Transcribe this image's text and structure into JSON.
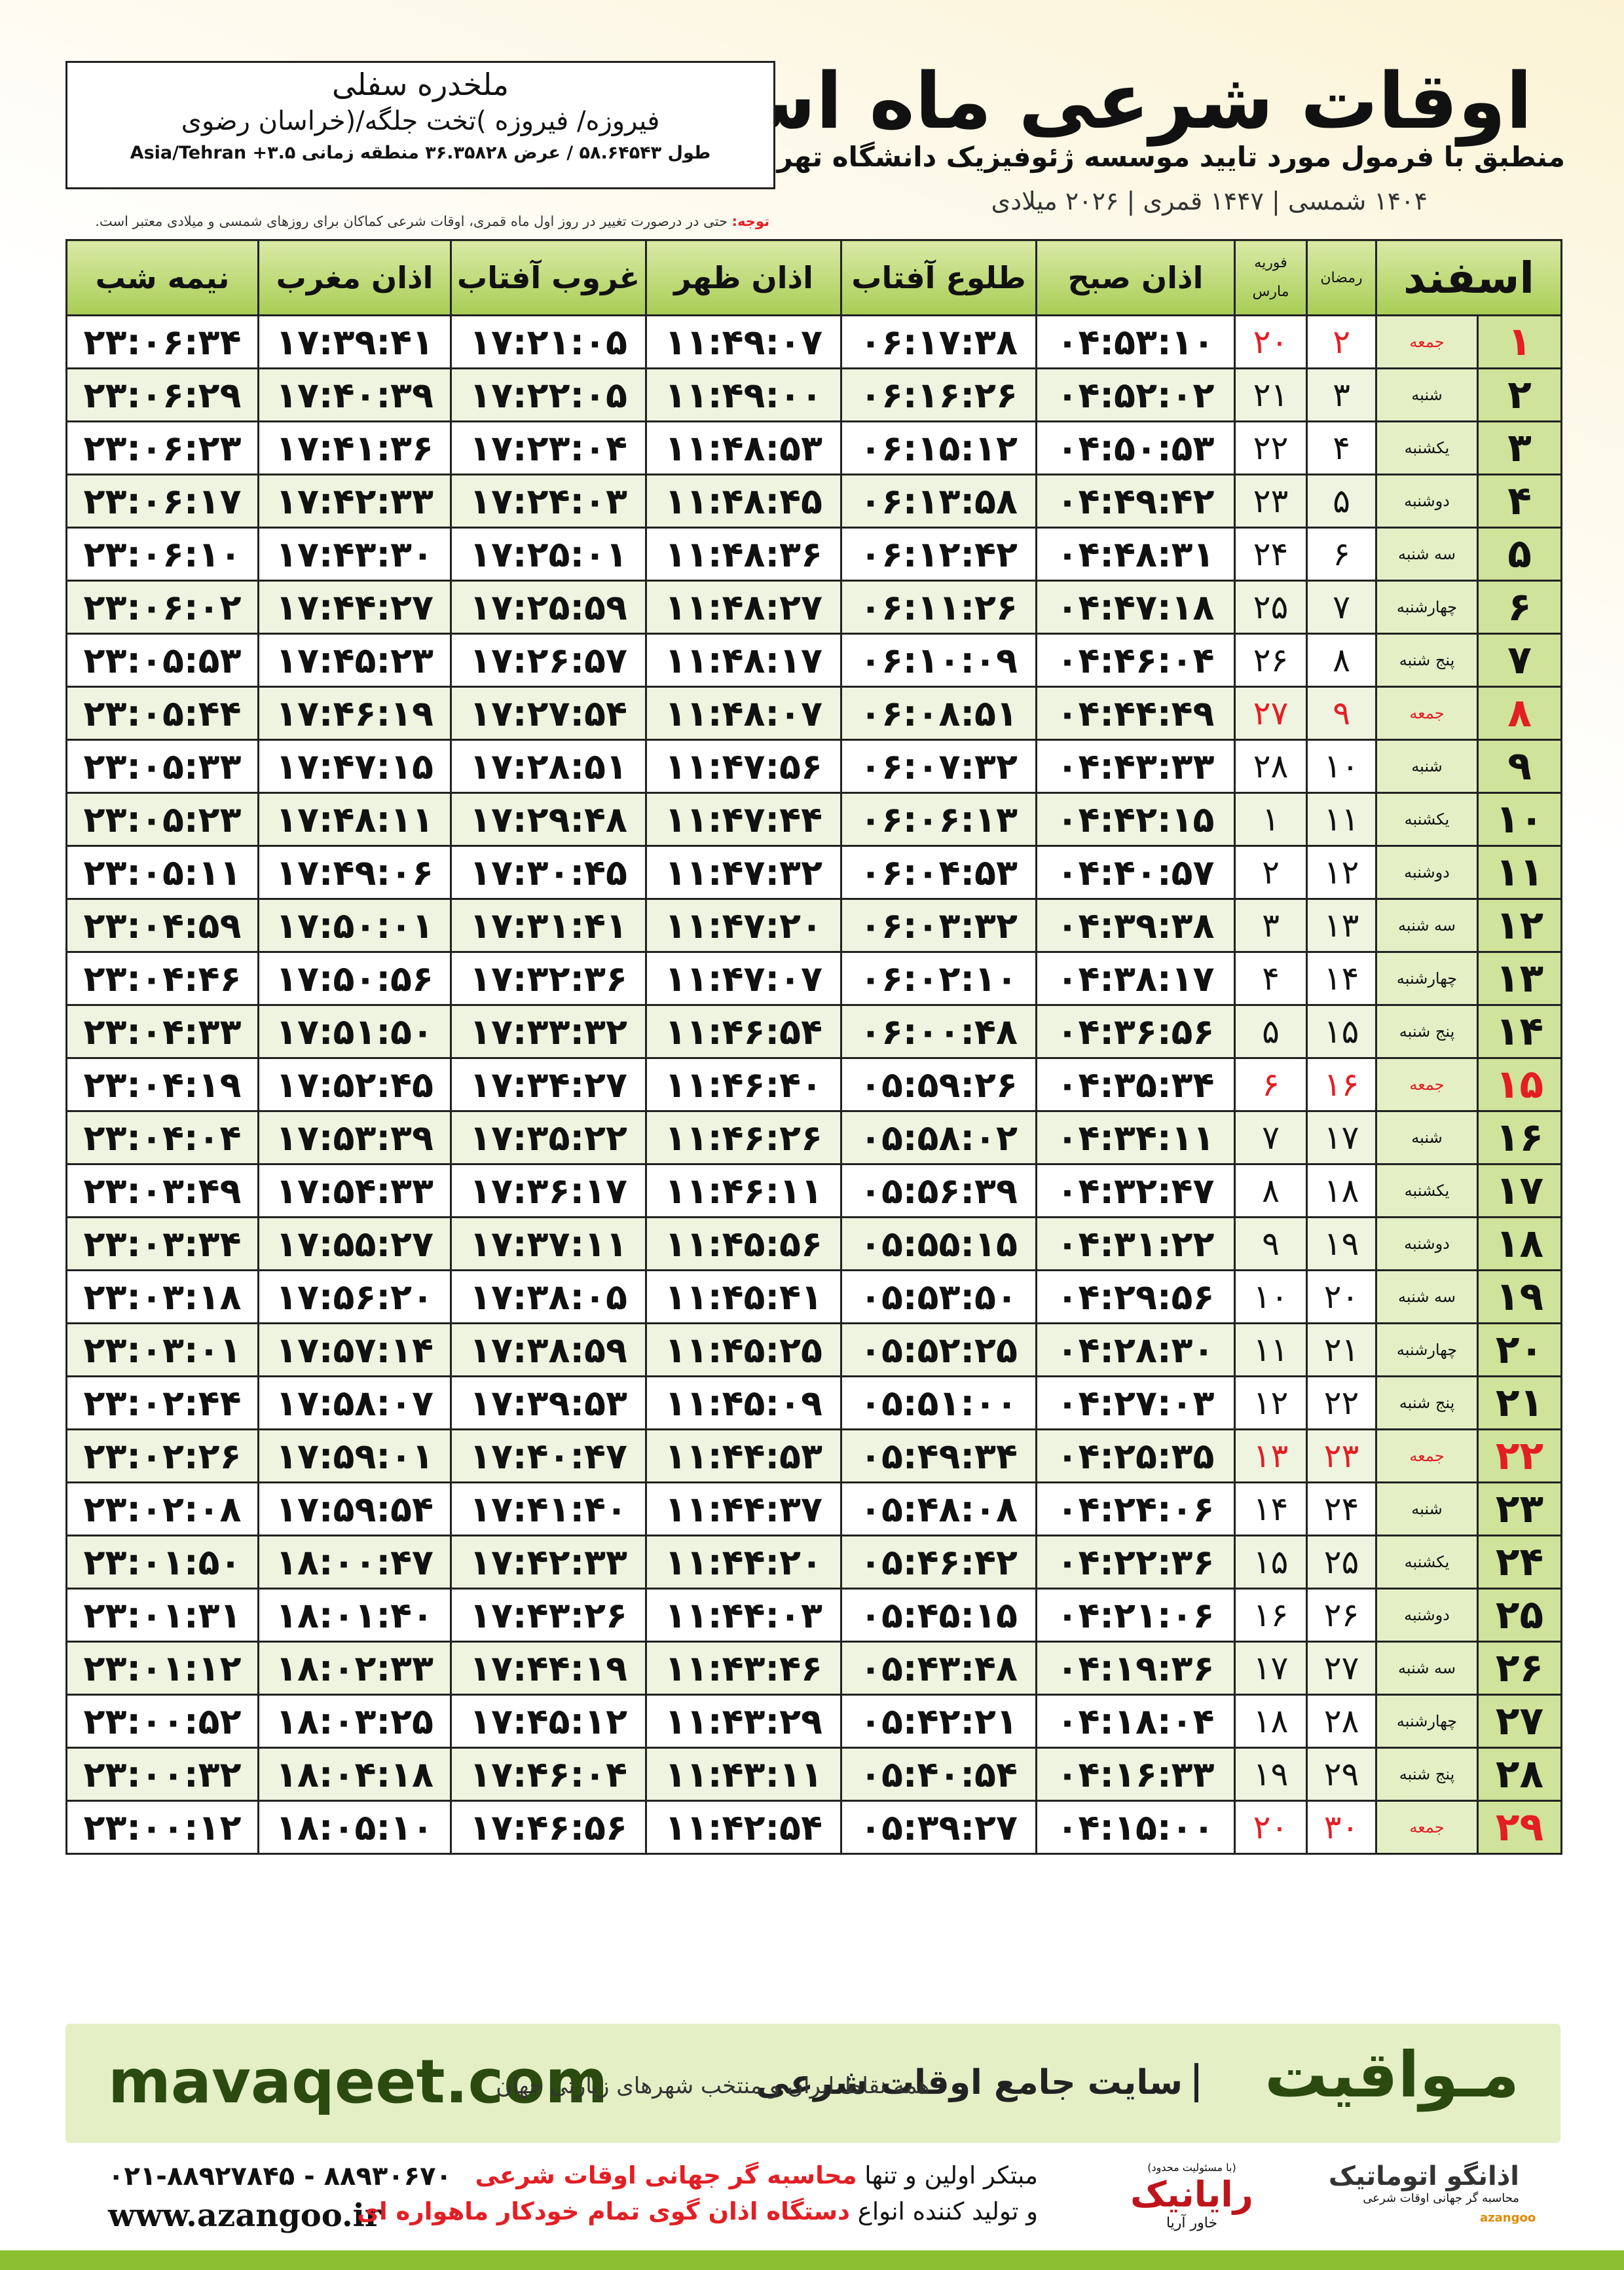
{
  "header": {
    "title": "اوقات شرعی ماه اسفند",
    "subtitle": "منطبق با فرمول مورد تایید موسسه ژئوفیزیک دانشگاه تهران",
    "dates": "۱۴۰۴ شمسی | ۱۴۴۷ قمری | ۲۰۲۶ میلادی"
  },
  "location": {
    "name": "ملخدره سفلی",
    "region": "فیروزه/ فیروزه )تخت جلگه/(خراسان رضوی",
    "coordinates": "طول ۵۸.۶۴۵۴۳ / عرض ۳۶.۳۵۸۲۸ منطقه زمانی ۳.۵+ Asia/Tehran"
  },
  "note": {
    "label": "توجه:",
    "text": "حتی در درصورت تغییر در روز اول ماه قمری، اوقات شرعی کماکان برای روزهای شمسی و میلادی معتبر است."
  },
  "table": {
    "columns": [
      "اسفند",
      "رمضان",
      "فوریه",
      "مارس",
      "اذان صبح",
      "طلوع آفتاب",
      "اذان ظهر",
      "غروب آفتاب",
      "اذان مغرب",
      "نیمه شب"
    ],
    "highlight_rows": [
      0,
      7,
      14,
      21,
      28
    ],
    "highlight_color": "#e31e24",
    "rows": [
      [
        "۱",
        "جمعه",
        "۲",
        "۲۰",
        "۰۴:۵۳:۱۰",
        "۰۶:۱۷:۳۸",
        "۱۱:۴۹:۰۷",
        "۱۷:۲۱:۰۵",
        "۱۷:۳۹:۴۱",
        "۲۳:۰۶:۳۴"
      ],
      [
        "۲",
        "شنبه",
        "۳",
        "۲۱",
        "۰۴:۵۲:۰۲",
        "۰۶:۱۶:۲۶",
        "۱۱:۴۹:۰۰",
        "۱۷:۲۲:۰۵",
        "۱۷:۴۰:۳۹",
        "۲۳:۰۶:۲۹"
      ],
      [
        "۳",
        "یکشنبه",
        "۴",
        "۲۲",
        "۰۴:۵۰:۵۳",
        "۰۶:۱۵:۱۲",
        "۱۱:۴۸:۵۳",
        "۱۷:۲۳:۰۴",
        "۱۷:۴۱:۳۶",
        "۲۳:۰۶:۲۳"
      ],
      [
        "۴",
        "دوشنبه",
        "۵",
        "۲۳",
        "۰۴:۴۹:۴۲",
        "۰۶:۱۳:۵۸",
        "۱۱:۴۸:۴۵",
        "۱۷:۲۴:۰۳",
        "۱۷:۴۲:۳۳",
        "۲۳:۰۶:۱۷"
      ],
      [
        "۵",
        "سه شنبه",
        "۶",
        "۲۴",
        "۰۴:۴۸:۳۱",
        "۰۶:۱۲:۴۲",
        "۱۱:۴۸:۳۶",
        "۱۷:۲۵:۰۱",
        "۱۷:۴۳:۳۰",
        "۲۳:۰۶:۱۰"
      ],
      [
        "۶",
        "چهارشنبه",
        "۷",
        "۲۵",
        "۰۴:۴۷:۱۸",
        "۰۶:۱۱:۲۶",
        "۱۱:۴۸:۲۷",
        "۱۷:۲۵:۵۹",
        "۱۷:۴۴:۲۷",
        "۲۳:۰۶:۰۲"
      ],
      [
        "۷",
        "پنج شنبه",
        "۸",
        "۲۶",
        "۰۴:۴۶:۰۴",
        "۰۶:۱۰:۰۹",
        "۱۱:۴۸:۱۷",
        "۱۷:۲۶:۵۷",
        "۱۷:۴۵:۲۳",
        "۲۳:۰۵:۵۳"
      ],
      [
        "۸",
        "جمعه",
        "۹",
        "۲۷",
        "۰۴:۴۴:۴۹",
        "۰۶:۰۸:۵۱",
        "۱۱:۴۸:۰۷",
        "۱۷:۲۷:۵۴",
        "۱۷:۴۶:۱۹",
        "۲۳:۰۵:۴۴"
      ],
      [
        "۹",
        "شنبه",
        "۱۰",
        "۲۸",
        "۰۴:۴۳:۳۳",
        "۰۶:۰۷:۳۲",
        "۱۱:۴۷:۵۶",
        "۱۷:۲۸:۵۱",
        "۱۷:۴۷:۱۵",
        "۲۳:۰۵:۳۳"
      ],
      [
        "۱۰",
        "یکشنبه",
        "۱۱",
        "۱",
        "۰۴:۴۲:۱۵",
        "۰۶:۰۶:۱۳",
        "۱۱:۴۷:۴۴",
        "۱۷:۲۹:۴۸",
        "۱۷:۴۸:۱۱",
        "۲۳:۰۵:۲۳"
      ],
      [
        "۱۱",
        "دوشنبه",
        "۱۲",
        "۲",
        "۰۴:۴۰:۵۷",
        "۰۶:۰۴:۵۳",
        "۱۱:۴۷:۳۲",
        "۱۷:۳۰:۴۵",
        "۱۷:۴۹:۰۶",
        "۲۳:۰۵:۱۱"
      ],
      [
        "۱۲",
        "سه شنبه",
        "۱۳",
        "۳",
        "۰۴:۳۹:۳۸",
        "۰۶:۰۳:۳۲",
        "۱۱:۴۷:۲۰",
        "۱۷:۳۱:۴۱",
        "۱۷:۵۰:۰۱",
        "۲۳:۰۴:۵۹"
      ],
      [
        "۱۳",
        "چهارشنبه",
        "۱۴",
        "۴",
        "۰۴:۳۸:۱۷",
        "۰۶:۰۲:۱۰",
        "۱۱:۴۷:۰۷",
        "۱۷:۳۲:۳۶",
        "۱۷:۵۰:۵۶",
        "۲۳:۰۴:۴۶"
      ],
      [
        "۱۴",
        "پنج شنبه",
        "۱۵",
        "۵",
        "۰۴:۳۶:۵۶",
        "۰۶:۰۰:۴۸",
        "۱۱:۴۶:۵۴",
        "۱۷:۳۳:۳۲",
        "۱۷:۵۱:۵۰",
        "۲۳:۰۴:۳۳"
      ],
      [
        "۱۵",
        "جمعه",
        "۱۶",
        "۶",
        "۰۴:۳۵:۳۴",
        "۰۵:۵۹:۲۶",
        "۱۱:۴۶:۴۰",
        "۱۷:۳۴:۲۷",
        "۱۷:۵۲:۴۵",
        "۲۳:۰۴:۱۹"
      ],
      [
        "۱۶",
        "شنبه",
        "۱۷",
        "۷",
        "۰۴:۳۴:۱۱",
        "۰۵:۵۸:۰۲",
        "۱۱:۴۶:۲۶",
        "۱۷:۳۵:۲۲",
        "۱۷:۵۳:۳۹",
        "۲۳:۰۴:۰۴"
      ],
      [
        "۱۷",
        "یکشنبه",
        "۱۸",
        "۸",
        "۰۴:۳۲:۴۷",
        "۰۵:۵۶:۳۹",
        "۱۱:۴۶:۱۱",
        "۱۷:۳۶:۱۷",
        "۱۷:۵۴:۳۳",
        "۲۳:۰۳:۴۹"
      ],
      [
        "۱۸",
        "دوشنبه",
        "۱۹",
        "۹",
        "۰۴:۳۱:۲۲",
        "۰۵:۵۵:۱۵",
        "۱۱:۴۵:۵۶",
        "۱۷:۳۷:۱۱",
        "۱۷:۵۵:۲۷",
        "۲۳:۰۳:۳۴"
      ],
      [
        "۱۹",
        "سه شنبه",
        "۲۰",
        "۱۰",
        "۰۴:۲۹:۵۶",
        "۰۵:۵۳:۵۰",
        "۱۱:۴۵:۴۱",
        "۱۷:۳۸:۰۵",
        "۱۷:۵۶:۲۰",
        "۲۳:۰۳:۱۸"
      ],
      [
        "۲۰",
        "چهارشنبه",
        "۲۱",
        "۱۱",
        "۰۴:۲۸:۳۰",
        "۰۵:۵۲:۲۵",
        "۱۱:۴۵:۲۵",
        "۱۷:۳۸:۵۹",
        "۱۷:۵۷:۱۴",
        "۲۳:۰۳:۰۱"
      ],
      [
        "۲۱",
        "پنج شنبه",
        "۲۲",
        "۱۲",
        "۰۴:۲۷:۰۳",
        "۰۵:۵۱:۰۰",
        "۱۱:۴۵:۰۹",
        "۱۷:۳۹:۵۳",
        "۱۷:۵۸:۰۷",
        "۲۳:۰۲:۴۴"
      ],
      [
        "۲۲",
        "جمعه",
        "۲۳",
        "۱۳",
        "۰۴:۲۵:۳۵",
        "۰۵:۴۹:۳۴",
        "۱۱:۴۴:۵۳",
        "۱۷:۴۰:۴۷",
        "۱۷:۵۹:۰۱",
        "۲۳:۰۲:۲۶"
      ],
      [
        "۲۳",
        "شنبه",
        "۲۴",
        "۱۴",
        "۰۴:۲۴:۰۶",
        "۰۵:۴۸:۰۸",
        "۱۱:۴۴:۳۷",
        "۱۷:۴۱:۴۰",
        "۱۷:۵۹:۵۴",
        "۲۳:۰۲:۰۸"
      ],
      [
        "۲۴",
        "یکشنبه",
        "۲۵",
        "۱۵",
        "۰۴:۲۲:۳۶",
        "۰۵:۴۶:۴۲",
        "۱۱:۴۴:۲۰",
        "۱۷:۴۲:۳۳",
        "۱۸:۰۰:۴۷",
        "۲۳:۰۱:۵۰"
      ],
      [
        "۲۵",
        "دوشنبه",
        "۲۶",
        "۱۶",
        "۰۴:۲۱:۰۶",
        "۰۵:۴۵:۱۵",
        "۱۱:۴۴:۰۳",
        "۱۷:۴۳:۲۶",
        "۱۸:۰۱:۴۰",
        "۲۳:۰۱:۳۱"
      ],
      [
        "۲۶",
        "سه شنبه",
        "۲۷",
        "۱۷",
        "۰۴:۱۹:۳۶",
        "۰۵:۴۳:۴۸",
        "۱۱:۴۳:۴۶",
        "۱۷:۴۴:۱۹",
        "۱۸:۰۲:۳۳",
        "۲۳:۰۱:۱۲"
      ],
      [
        "۲۷",
        "چهارشنبه",
        "۲۸",
        "۱۸",
        "۰۴:۱۸:۰۴",
        "۰۵:۴۲:۲۱",
        "۱۱:۴۳:۲۹",
        "۱۷:۴۵:۱۲",
        "۱۸:۰۳:۲۵",
        "۲۳:۰۰:۵۲"
      ],
      [
        "۲۸",
        "پنج شنبه",
        "۲۹",
        "۱۹",
        "۰۴:۱۶:۳۳",
        "۰۵:۴۰:۵۴",
        "۱۱:۴۳:۱۱",
        "۱۷:۴۶:۰۴",
        "۱۸:۰۴:۱۸",
        "۲۳:۰۰:۳۲"
      ],
      [
        "۲۹",
        "جمعه",
        "۳۰",
        "۲۰",
        "۰۴:۱۵:۰۰",
        "۰۵:۳۹:۲۷",
        "۱۱:۴۲:۵۴",
        "۱۷:۴۶:۵۶",
        "۱۸:۰۵:۱۰",
        "۲۳:۰۰:۱۲"
      ]
    ]
  },
  "footer": {
    "site": "mavaqeet.com",
    "brand": "مـواقیت",
    "tagline": "سایت جامع اوقات شرعی",
    "coverage": "همه نقاط ایران و منتخب شهرهای زیارتی جهان",
    "phone": "۰۲۱-۸۸۹۲۷۸۴۵ - ۸۸۹۳۰۶۷۰",
    "web": "www.azangoo.ir",
    "line1": [
      "مبتکر اولین و تنها",
      "محاسبه گر جهانی اوقات شرعی"
    ],
    "line2": [
      "و تولید کننده انواع",
      "دستگاه اذان گوی تمام خودکار ماهواره ای"
    ],
    "logo1": {
      "name": "رایانیک",
      "sub": "خاور آریا",
      "note": "(با مسئولیت محدود)"
    },
    "logo2": {
      "name": "اذانگو اتوماتیک",
      "sub": "محاسبه گر جهانی اوقات شرعی",
      "latin": "azangoo"
    }
  }
}
